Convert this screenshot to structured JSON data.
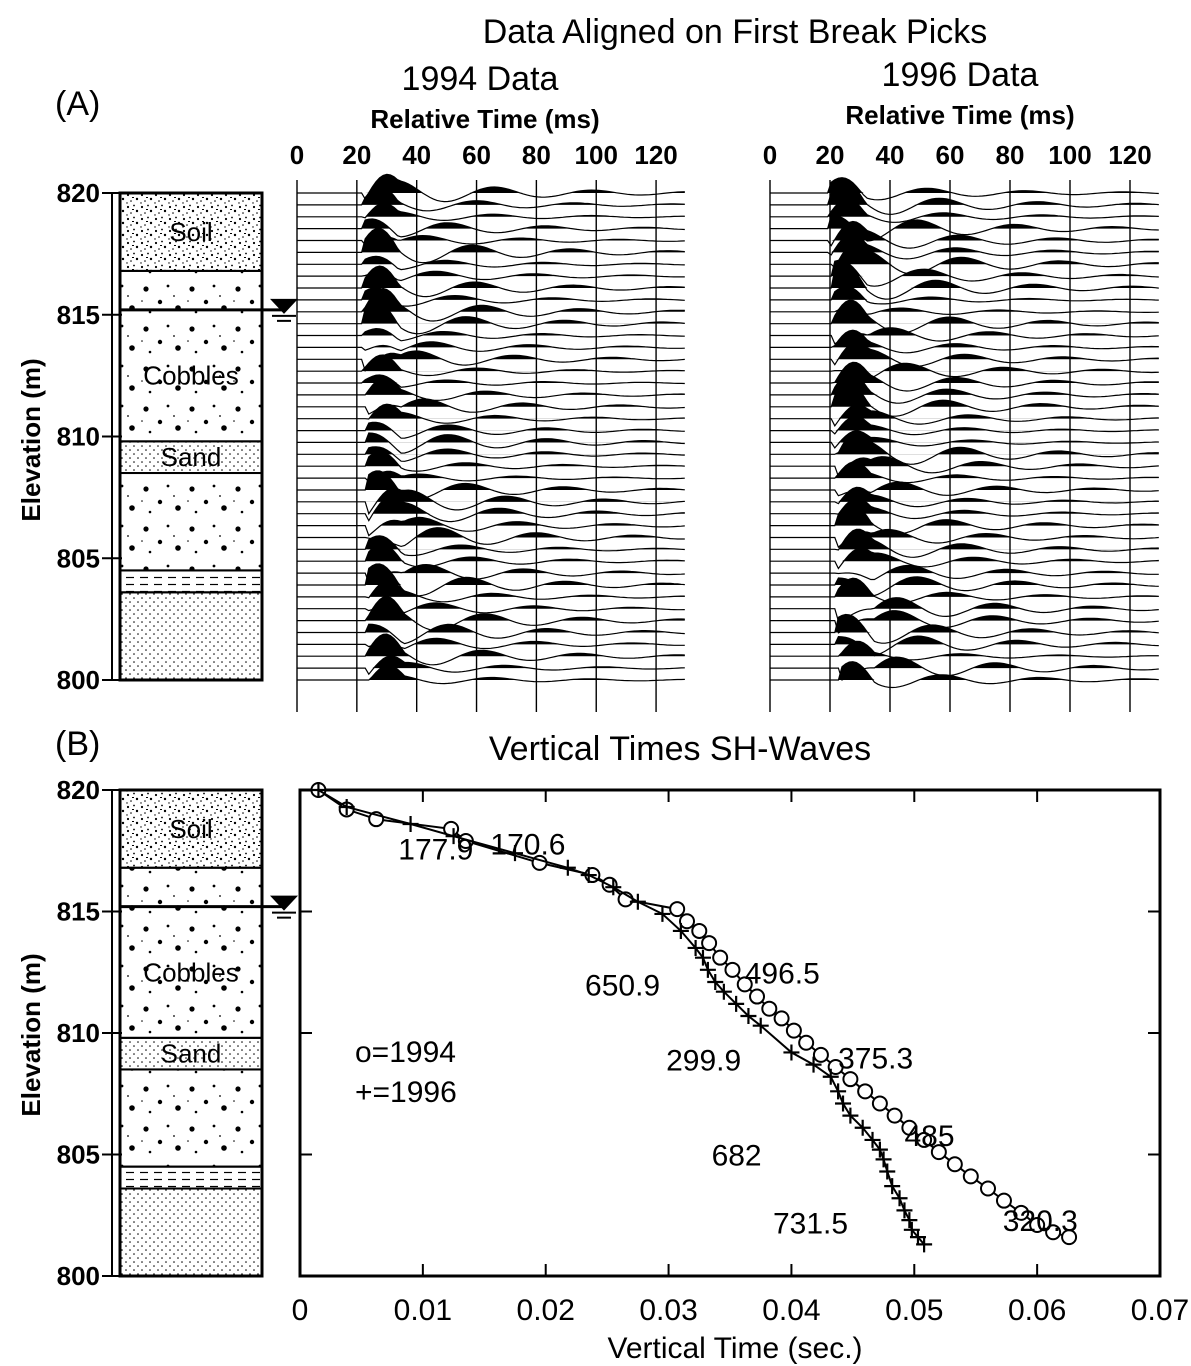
{
  "figure_title": "Data Aligned on First Break Picks",
  "panel_a": {
    "label": "(A)",
    "data_1994": {
      "title": "1994 Data",
      "xlabel": "Relative Time (ms)",
      "ticks": [
        "0",
        "20",
        "40",
        "60",
        "80",
        "100",
        "120"
      ]
    },
    "data_1996": {
      "title": "1996 Data",
      "xlabel": "Relative Time (ms)",
      "ticks": [
        "0",
        "20",
        "40",
        "60",
        "80",
        "100",
        "120"
      ]
    }
  },
  "panel_b": {
    "label": "(B)",
    "title": "Vertical Times SH-Waves",
    "xlabel": "Vertical Time (sec.)",
    "legend": [
      "o=1994",
      "+=1996"
    ]
  },
  "elevation_axis": {
    "ylabel": "Elevation (m)",
    "ticks": [
      "820",
      "815",
      "810",
      "805",
      "800"
    ]
  },
  "lithology": [
    {
      "name": "Soil",
      "top": 820,
      "bottom": 816.8,
      "pattern": "soil"
    },
    {
      "name": "",
      "top": 816.8,
      "bottom": 815.2,
      "pattern": "cobbles"
    },
    {
      "name": "Cobbles",
      "top": 815.2,
      "bottom": 809.8,
      "pattern": "cobbles"
    },
    {
      "name": "Sand",
      "top": 809.8,
      "bottom": 808.5,
      "pattern": "sand"
    },
    {
      "name": "",
      "top": 808.5,
      "bottom": 804.5,
      "pattern": "cobbles"
    },
    {
      "name": "",
      "top": 804.5,
      "bottom": 803.6,
      "pattern": "dashed"
    },
    {
      "name": "",
      "top": 803.6,
      "bottom": 800,
      "pattern": "sand"
    }
  ],
  "water_table_elevation": 815.2,
  "chart_data": [
    {
      "type": "line",
      "title": "1994 Data",
      "xlabel": "Relative Time (ms)",
      "ylabel": "Elevation (m)",
      "xlim": [
        0,
        130
      ],
      "ylim": [
        800,
        820
      ],
      "series": []
    },
    {
      "type": "line",
      "title": "1996 Data",
      "xlabel": "Relative Time (ms)",
      "ylabel": "Elevation (m)",
      "xlim": [
        0,
        130
      ],
      "ylim": [
        800,
        820
      ],
      "series": []
    },
    {
      "type": "line",
      "title": "Vertical Times SH-Waves",
      "xlabel": "Vertical Time (sec.)",
      "ylabel": "Elevation (m)",
      "xlim": [
        0,
        0.07
      ],
      "ylim": [
        800,
        820
      ],
      "xticks": [
        "0",
        "0.01",
        "0.02",
        "0.03",
        "0.04",
        "0.05",
        "0.06",
        "0.07"
      ],
      "yticks": [
        "820",
        "815",
        "810",
        "805",
        "800"
      ],
      "series": [
        {
          "name": "1994",
          "marker": "o",
          "x": [
            0.0015,
            0.0038,
            0.0062,
            0.0123,
            0.0135,
            0.0195,
            0.0238,
            0.0252,
            0.0265,
            0.0307,
            0.0315,
            0.0325,
            0.0333,
            0.0342,
            0.0352,
            0.0362,
            0.0372,
            0.0382,
            0.0392,
            0.0402,
            0.0412,
            0.0424,
            0.0436,
            0.0448,
            0.046,
            0.0472,
            0.0484,
            0.0496,
            0.0508,
            0.052,
            0.0533,
            0.0546,
            0.056,
            0.0573,
            0.0587,
            0.06,
            0.0613,
            0.0626
          ],
          "y": [
            820,
            819.2,
            818.8,
            818.4,
            817.9,
            817.0,
            816.5,
            816.1,
            815.5,
            815.1,
            814.6,
            814.2,
            813.7,
            813.1,
            812.6,
            812.0,
            811.5,
            811.0,
            810.6,
            810.1,
            809.6,
            809.1,
            808.6,
            808.1,
            807.6,
            807.1,
            806.6,
            806.1,
            805.6,
            805.1,
            804.6,
            804.1,
            803.6,
            803.1,
            802.6,
            802.1,
            801.8,
            801.6
          ],
          "labels": [
            {
              "text": "170.6",
              "x": 0.0155,
              "y": 817.8
            },
            {
              "text": "496.5",
              "x": 0.0362,
              "y": 812.5
            },
            {
              "text": "375.3",
              "x": 0.0438,
              "y": 809.0
            },
            {
              "text": "485",
              "x": 0.0492,
              "y": 805.8
            },
            {
              "text": "320.3",
              "x": 0.0572,
              "y": 802.3
            }
          ]
        },
        {
          "name": "1996",
          "marker": "+",
          "x": [
            0.0015,
            0.0038,
            0.009,
            0.0125,
            0.0175,
            0.0218,
            0.0235,
            0.0255,
            0.0275,
            0.0295,
            0.031,
            0.0322,
            0.0328,
            0.0332,
            0.0338,
            0.0345,
            0.0355,
            0.0365,
            0.0375,
            0.04,
            0.0418,
            0.0432,
            0.0438,
            0.0442,
            0.0448,
            0.0458,
            0.0466,
            0.0472,
            0.0475,
            0.0478,
            0.0482,
            0.0488,
            0.0492,
            0.0496,
            0.0498,
            0.0503,
            0.0508
          ],
          "y": [
            820,
            819.3,
            818.6,
            818.1,
            817.4,
            816.8,
            816.5,
            816.0,
            815.4,
            814.9,
            814.2,
            813.5,
            813.1,
            812.6,
            812.1,
            811.7,
            811.2,
            810.7,
            810.3,
            809.2,
            808.7,
            808.2,
            807.6,
            807.1,
            806.6,
            806.1,
            805.6,
            805.2,
            804.8,
            804.3,
            803.7,
            803.2,
            802.7,
            802.3,
            801.9,
            801.6,
            801.3
          ],
          "labels": [
            {
              "text": "177.9",
              "x": 0.008,
              "y": 817.6
            },
            {
              "text": "650.9",
              "x": 0.0232,
              "y": 812.0
            },
            {
              "text": "299.9",
              "x": 0.0298,
              "y": 808.9
            },
            {
              "text": "682",
              "x": 0.0335,
              "y": 805.0
            },
            {
              "text": "731.5",
              "x": 0.0385,
              "y": 802.2
            }
          ]
        }
      ]
    }
  ]
}
